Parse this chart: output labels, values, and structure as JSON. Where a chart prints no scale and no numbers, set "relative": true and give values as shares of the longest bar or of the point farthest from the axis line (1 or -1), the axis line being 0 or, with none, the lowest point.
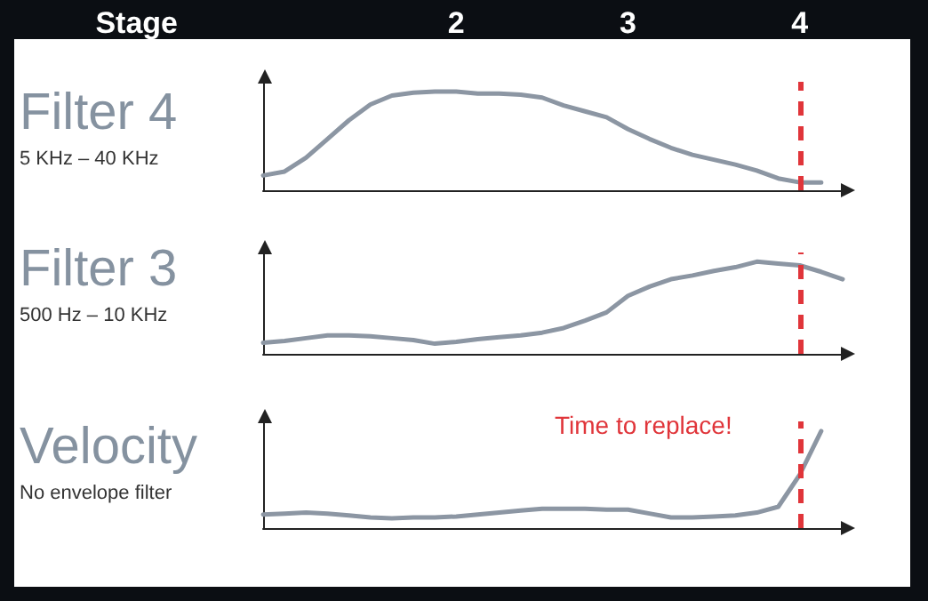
{
  "chart_data": [
    {
      "type": "line",
      "title": "Filter 4",
      "subtitle": "5 KHz – 40 KHz",
      "relative": true,
      "tick_labels": "x",
      "xlabel": "Stage",
      "categories": [
        null,
        null,
        null,
        null,
        null,
        null,
        null,
        null,
        null,
        "2",
        null,
        null,
        null,
        null,
        null,
        null,
        null,
        "3",
        null,
        null,
        null,
        null,
        null,
        null,
        null,
        "4",
        null,
        null
      ],
      "series": [
        {
          "color": "#8c96a3",
          "values": [
            0.15,
            0.19,
            0.33,
            0.52,
            0.71,
            0.87,
            0.96,
            0.99,
            1,
            1,
            0.98,
            0.98,
            0.97,
            0.94,
            0.86,
            0.8,
            0.74,
            0.62,
            0.52,
            0.43,
            0.36,
            0.31,
            0.26,
            0.2,
            0.12,
            0.08,
            0.08,
            null
          ]
        }
      ],
      "ref_lines": [
        {
          "axis": "x",
          "value": "4",
          "color": "#e0353a",
          "line_style": "dashed"
        }
      ]
    },
    {
      "type": "line",
      "title": "Filter 3",
      "subtitle": "500 Hz – 10 KHz",
      "relative": true,
      "tick_labels": false,
      "categories": [
        null,
        null,
        null,
        null,
        null,
        null,
        null,
        null,
        null,
        "2",
        null,
        null,
        null,
        null,
        null,
        null,
        null,
        "3",
        null,
        null,
        null,
        null,
        null,
        null,
        null,
        "4",
        null,
        null
      ],
      "series": [
        {
          "color": "#8c96a3",
          "values": [
            0.12,
            0.14,
            0.17,
            0.2,
            0.2,
            0.19,
            0.17,
            0.15,
            0.11,
            0.13,
            0.16,
            0.18,
            0.2,
            0.23,
            0.28,
            0.36,
            0.45,
            0.63,
            0.73,
            0.81,
            0.85,
            0.9,
            0.94,
            1,
            0.98,
            0.96,
            0.89,
            0.81
          ]
        }
      ],
      "ref_lines": [
        {
          "axis": "x",
          "value": "4",
          "color": "#e0353a",
          "line_style": "dashed"
        }
      ]
    },
    {
      "type": "line",
      "title": "Velocity",
      "subtitle": "No envelope filter",
      "relative": true,
      "tick_labels": false,
      "annotations": [
        "Time to replace!"
      ],
      "categories": [
        null,
        null,
        null,
        null,
        null,
        null,
        null,
        null,
        null,
        "2",
        null,
        null,
        null,
        null,
        null,
        null,
        null,
        "3",
        null,
        null,
        null,
        null,
        null,
        null,
        null,
        "4",
        null,
        null
      ],
      "series": [
        {
          "color": "#8c96a3",
          "values": [
            0.14,
            0.15,
            0.16,
            0.15,
            0.13,
            0.11,
            0.1,
            0.11,
            0.11,
            0.12,
            0.14,
            0.16,
            0.18,
            0.2,
            0.2,
            0.2,
            0.19,
            0.19,
            0.15,
            0.11,
            0.11,
            0.12,
            0.13,
            0.16,
            0.22,
            0.55,
            1,
            null
          ]
        }
      ],
      "ref_lines": [
        {
          "axis": "x",
          "value": "4",
          "color": "#e0353a",
          "line_style": "dashed"
        }
      ]
    }
  ]
}
